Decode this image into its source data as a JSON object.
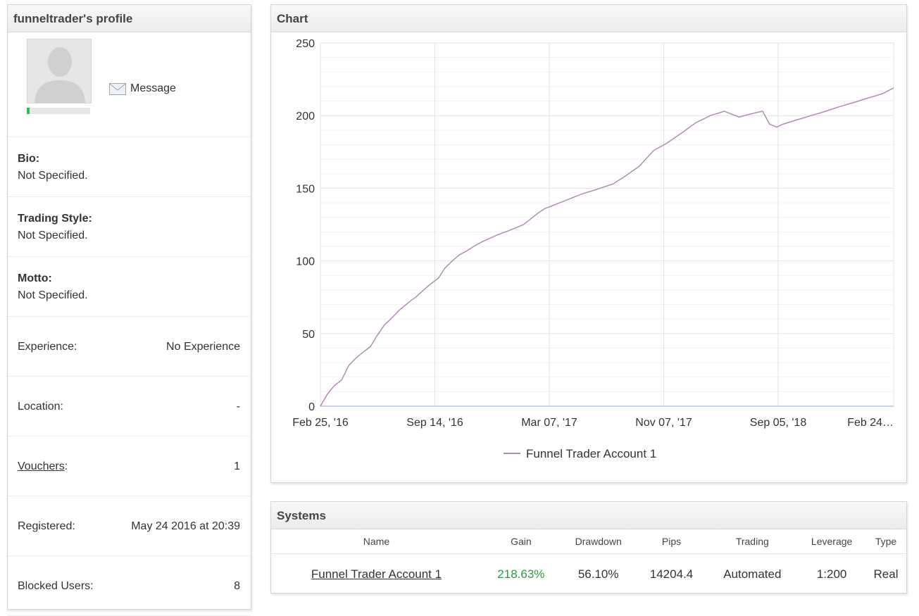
{
  "profile": {
    "title": "funneltrader's profile",
    "message_label": "Message",
    "reputation_fraction": 0.04,
    "bio_label": "Bio:",
    "bio_value": "Not Specified.",
    "style_label": "Trading Style:",
    "style_value": "Not Specified.",
    "motto_label": "Motto:",
    "motto_value": "Not Specified.",
    "experience_label": "Experience:",
    "experience_value": "No Experience",
    "location_label": "Location:",
    "location_value": "-",
    "vouchers_label": "Vouchers",
    "vouchers_colon": ":",
    "vouchers_value": "1",
    "registered_label": "Registered:",
    "registered_value": "May 24 2016 at 20:39",
    "blocked_label": "Blocked Users:",
    "blocked_value": "8"
  },
  "chart_panel": {
    "title": "Chart"
  },
  "chart_data": {
    "type": "line",
    "title": "",
    "xlabel": "",
    "ylabel": "",
    "ylim": [
      0,
      250
    ],
    "yticks": [
      0,
      50,
      100,
      150,
      200,
      250
    ],
    "xticks": [
      "Feb 25, '16",
      "Sep 14, '16",
      "Mar 07, '17",
      "Nov 07, '17",
      "Sep 05, '18",
      "Feb 24…"
    ],
    "grid": true,
    "legend": "bottom-center",
    "series": [
      {
        "name": "Funnel Trader Account 1",
        "color": "#b48ab8",
        "x": [
          "2016-02-25",
          "2016-03-10",
          "2016-03-25",
          "2016-04-10",
          "2016-04-25",
          "2016-05-10",
          "2016-05-25",
          "2016-06-10",
          "2016-06-25",
          "2016-07-10",
          "2016-07-20",
          "2016-08-01",
          "2016-08-10",
          "2016-08-25",
          "2016-09-05",
          "2016-09-14",
          "2016-10-01",
          "2016-10-15",
          "2016-11-01",
          "2016-11-15",
          "2016-12-01",
          "2016-12-15",
          "2017-01-01",
          "2017-01-15",
          "2017-02-01",
          "2017-03-07",
          "2017-04-01",
          "2017-05-01",
          "2017-06-01",
          "2017-06-15",
          "2017-07-01",
          "2017-08-01",
          "2017-09-01",
          "2017-10-01",
          "2017-11-07",
          "2017-12-01",
          "2018-01-01",
          "2018-01-15",
          "2018-02-01",
          "2018-03-01",
          "2018-04-01",
          "2018-05-01",
          "2018-06-01",
          "2018-07-01",
          "2018-08-01",
          "2018-09-05",
          "2018-09-20",
          "2018-10-05",
          "2018-10-06",
          "2018-10-20",
          "2018-11-01",
          "2018-12-01",
          "2019-01-01",
          "2019-02-01",
          "2019-03-01",
          "2019-04-01",
          "2019-05-01",
          "2019-06-01",
          "2019-06-25"
        ],
        "values": [
          0,
          8,
          14,
          18,
          28,
          33,
          37,
          41,
          49,
          56,
          59,
          63,
          66,
          70,
          73,
          75,
          80,
          84,
          88,
          95,
          100,
          104,
          107,
          110,
          113,
          118,
          121,
          125,
          133,
          136,
          138,
          142,
          146,
          149,
          153,
          158,
          165,
          170,
          176,
          181,
          188,
          195,
          200,
          203,
          199,
          202,
          203,
          194,
          194,
          192,
          194,
          197,
          200,
          203,
          206,
          209,
          212,
          215,
          219
        ]
      }
    ]
  },
  "systems": {
    "title": "Systems",
    "columns": [
      "Name",
      "Gain",
      "Drawdown",
      "Pips",
      "Trading",
      "Leverage",
      "Type"
    ],
    "rows": [
      {
        "name": "Funnel Trader Account 1",
        "gain": "218.63%",
        "drawdown": "56.10%",
        "pips": "14204.4",
        "trading": "Automated",
        "leverage": "1:200",
        "type": "Real"
      }
    ],
    "gain_color": "#2c9c3c"
  }
}
